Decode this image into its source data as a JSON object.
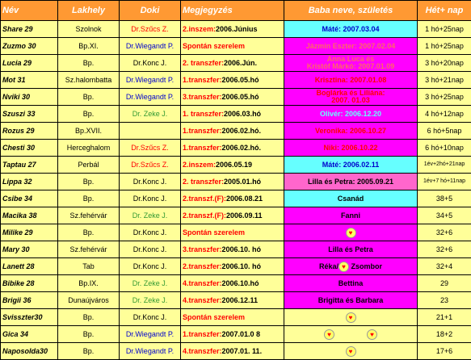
{
  "header": {
    "nev": "Név",
    "lakhely": "Lakhely",
    "doki": "Doki",
    "megjegyzes": "Megjegyzés",
    "baba": "Baba neve, születés",
    "het": "Hét+ nap"
  },
  "colors": {
    "header_bg": "#ff9933",
    "row_bg": "#ffff99",
    "cyan": "#66ffff",
    "magenta": "#ff00ff",
    "pink": "#ff66cc",
    "red_text": "#ff0000",
    "blue_text": "#0000cc",
    "green_text": "#339933"
  },
  "rows": [
    {
      "name": "Share 29",
      "place": "Szolnok",
      "doc": "Dr.Szűcs Z.",
      "docColor": "#ff0000",
      "noteLead": "2.inszem:",
      "noteRest": "2006.Június",
      "baby": "Máté: 2007.03.04",
      "babyBg": "#66ffff",
      "babyColor": "#0000cc",
      "age": "1 hó+25nap"
    },
    {
      "name": "Zuzmo 30",
      "place": "Bp.XI.",
      "doc": "Dr.Wiegandt P.",
      "docColor": "#0000cc",
      "noteLead": "Spontán szerelem",
      "noteRest": "",
      "baby": "Jázmin Eszter: 2007.02.04",
      "babyBg": "#ff00ff",
      "babyColor": "#ff6666",
      "age": "1 hó+25nap"
    },
    {
      "name": "Lucia 29",
      "place": "Bp.",
      "doc": "Dr.Konc J.",
      "docColor": "#000000",
      "noteLead": "2. transzfer:",
      "noteRest": "2006.Jún.",
      "baby": "Anna Luca és",
      "babyLine2": "Kristóf Márkó: 2007.01.09",
      "babyBg": "#ff00ff",
      "babyColor": "#ff6666",
      "age": "3 hó+20nap"
    },
    {
      "name": "Mot 31",
      "place": "Sz.halombatta",
      "doc": "Dr.Wiegandt P.",
      "docColor": "#0000cc",
      "noteLead": "1.transzfer:",
      "noteRest": "2006.05.hó",
      "baby": "Krisztina: 2007.01.08",
      "babyBg": "#ff00ff",
      "babyColor": "#ff0000",
      "age": "3 hó+21nap"
    },
    {
      "name": "Nviki 30",
      "place": "Bp.",
      "doc": "Dr.Wiegandt P.",
      "docColor": "#0000cc",
      "noteLead": "3.transzfer:",
      "noteRest": "2006.05.hó",
      "baby": "Boglárka és Liliána:",
      "babyLine2": "2007. 01.03",
      "babyBg": "#ff00ff",
      "babyColor": "#ff0000",
      "age": "3 hó+25nap"
    },
    {
      "name": "Szuszi 33",
      "place": "Bp.",
      "doc": "Dr. Zeke J.",
      "docColor": "#339933",
      "noteLead": "1. transzfer:",
      "noteRest": "2006.03.hó",
      "baby": "Olivér: 2006.12.20",
      "babyBg": "#ff00ff",
      "babyColor": "#66ffff",
      "age": "4 hó+12nap"
    },
    {
      "name": "Rozus 29",
      "place": "Bp.XVII.",
      "doc": "",
      "docColor": "#000000",
      "noteLead": "1.transzfer:",
      "noteRest": "2006.02.hó.",
      "baby": "Veronika: 2006.10.27",
      "babyBg": "#ff00ff",
      "babyColor": "#ff0000",
      "age": "6 hó+5nap"
    },
    {
      "name": "Chesti 30",
      "place": "Herceghalom",
      "doc": "Dr.Szűcs Z.",
      "docColor": "#ff0000",
      "noteLead": "1.transzfer:",
      "noteRest": "2006.02.hó.",
      "baby": "Niki: 2006.10.22",
      "babyBg": "#ff00ff",
      "babyColor": "#ff0000",
      "age": "6 hó+10nap"
    },
    {
      "name": "Taptau 27",
      "place": "Perbál",
      "doc": "Dr.Szűcs Z.",
      "docColor": "#ff0000",
      "noteLead": "2.inszem:",
      "noteRest": "2006.05.19",
      "baby": "Máté: 2006.02.11",
      "babyBg": "#66ffff",
      "babyColor": "#0000cc",
      "age": "1év+2hó+21nap",
      "ageSmall": true
    },
    {
      "name": "Lippa 32",
      "place": "Bp.",
      "doc": "Dr.Konc J.",
      "docColor": "#000000",
      "noteLead": "2. transzfer:",
      "noteRest": "2005.01.hó",
      "baby": "Lilla és Petra: 2005.09.21",
      "babyBg": "#ff66cc",
      "babyColor": "#000000",
      "age": "1év+7 hó+11nap",
      "ageSmall": true
    },
    {
      "name": "Csibe 34",
      "place": "Bp.",
      "doc": "Dr.Konc J.",
      "docColor": "#000000",
      "noteLead": "2.transzf.(F):",
      "noteRest": "2006.08.21",
      "baby": "Csanád",
      "babyBg": "#66ffff",
      "babyColor": "#000000",
      "age": "38+5"
    },
    {
      "name": "Macika 38",
      "place": "Sz.fehérvár",
      "doc": "Dr. Zeke J.",
      "docColor": "#339933",
      "noteLead": "2.transzf.(F):",
      "noteRest": "2006.09.11",
      "baby": "Fanni",
      "babyBg": "#ff00ff",
      "babyColor": "#000000",
      "age": "34+5"
    },
    {
      "name": "Milike 29",
      "place": "Bp.",
      "doc": "Dr.Konc J.",
      "docColor": "#000000",
      "noteLead": "Spontán szerelem",
      "noteRest": "",
      "baby": "",
      "hearts": 1,
      "babyBg": "#ff00ff",
      "babyColor": "#000000",
      "age": "32+6"
    },
    {
      "name": "Mary 30",
      "place": "Sz.fehérvár",
      "doc": "Dr.Konc J.",
      "docColor": "#000000",
      "noteLead": "3.transzfer:",
      "noteRest": "2006.10. hó",
      "baby": "Lilla és Petra",
      "babyBg": "#ff00ff",
      "babyColor": "#000000",
      "age": "32+6"
    },
    {
      "name": "Lanett 28",
      "place": "Tab",
      "doc": "Dr.Konc J.",
      "docColor": "#000000",
      "noteLead": "2.transzfer:",
      "noteRest": "2006.10. hó",
      "baby": "Réka/",
      "babyAfter": "Zsombor",
      "hearts": 1,
      "babyBg": "#ff00ff",
      "babyColor": "#000000",
      "age": "32+4"
    },
    {
      "name": "Bibike 28",
      "place": "Bp.IX.",
      "doc": "Dr. Zeke J.",
      "docColor": "#339933",
      "noteLead": "4.transzfer:",
      "noteRest": "2006.10.hó",
      "baby": "Bettina",
      "babyBg": "#ff00ff",
      "babyColor": "#000000",
      "age": "29"
    },
    {
      "name": "Brigii 36",
      "place": "Dunaújváros",
      "doc": "Dr. Zeke J.",
      "docColor": "#339933",
      "noteLead": "4.transzfer:",
      "noteRest": "2006.12.11",
      "baby": "Brigitta és Barbara",
      "babyBg": "#ff00ff",
      "babyColor": "#000000",
      "age": "23"
    },
    {
      "name": "Svisszter30",
      "place": "Bp.",
      "doc": "Dr.Konc J.",
      "docColor": "#000000",
      "noteLead": "Spontán szerelem",
      "noteRest": "",
      "baby": "",
      "hearts": 1,
      "babyBg": "#ffff99",
      "babyColor": "#000000",
      "age": "21+1"
    },
    {
      "name": "Gica 34",
      "place": "Bp.",
      "doc": "Dr.Wiegandt P.",
      "docColor": "#0000cc",
      "noteLead": "1.transzfer:",
      "noteRest": "2007.01.0 8",
      "baby": "",
      "hearts": 2,
      "babyBg": "#ffff99",
      "babyColor": "#000000",
      "age": "18+2"
    },
    {
      "name": "Naposolda30",
      "place": "Bp.",
      "doc": "Dr.Wiegandt P.",
      "docColor": "#0000cc",
      "noteLead": "4.transzfer:",
      "noteRest": "2007.01. 11.",
      "baby": "",
      "hearts": 1,
      "babyBg": "#ffff99",
      "babyColor": "#000000",
      "age": "17+6"
    }
  ]
}
